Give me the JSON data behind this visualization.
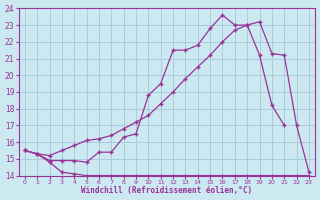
{
  "xlabel": "Windchill (Refroidissement éolien,°C)",
  "xlim": [
    -0.5,
    23.5
  ],
  "ylim": [
    14,
    24
  ],
  "yticks": [
    14,
    15,
    16,
    17,
    18,
    19,
    20,
    21,
    22,
    23,
    24
  ],
  "xticks": [
    0,
    1,
    2,
    3,
    4,
    5,
    6,
    7,
    8,
    9,
    10,
    11,
    12,
    13,
    14,
    15,
    16,
    17,
    18,
    19,
    20,
    21,
    22,
    23
  ],
  "bg_color": "#cce8f0",
  "grid_color": "#aaccdd",
  "line_color": "#993399",
  "line1_x": [
    0,
    1,
    2,
    3,
    4,
    5,
    6,
    7,
    8,
    9,
    10,
    11,
    12,
    13,
    14,
    15,
    16,
    17,
    18,
    19,
    20,
    21,
    22,
    23
  ],
  "line1_y": [
    15.5,
    15.3,
    14.8,
    14.2,
    14.1,
    14.0,
    14.0,
    14.0,
    14.0,
    14.0,
    14.0,
    14.0,
    14.0,
    14.0,
    14.0,
    14.0,
    14.0,
    14.0,
    14.0,
    14.0,
    14.0,
    14.0,
    14.0,
    14.0
  ],
  "line2_x": [
    0,
    1,
    2,
    3,
    4,
    5,
    6,
    7,
    8,
    9,
    10,
    11,
    12,
    13,
    14,
    15,
    16,
    17,
    18,
    19,
    20,
    21
  ],
  "line2_y": [
    15.5,
    15.3,
    14.9,
    14.9,
    14.9,
    14.8,
    15.4,
    15.4,
    16.3,
    16.5,
    18.8,
    19.5,
    21.5,
    21.5,
    21.8,
    22.8,
    23.6,
    23.0,
    23.0,
    21.2,
    18.2,
    17.0
  ],
  "line3_x": [
    0,
    1,
    2,
    3,
    4,
    5,
    6,
    7,
    8,
    9,
    10,
    11,
    12,
    13,
    14,
    15,
    16,
    17,
    18,
    19,
    20,
    21,
    22,
    23
  ],
  "line3_y": [
    15.5,
    15.3,
    15.2,
    15.5,
    15.8,
    16.1,
    16.2,
    16.4,
    16.8,
    17.2,
    17.6,
    18.3,
    19.0,
    19.8,
    20.5,
    21.2,
    22.0,
    22.7,
    23.0,
    23.2,
    21.3,
    21.2,
    17.0,
    14.2
  ]
}
